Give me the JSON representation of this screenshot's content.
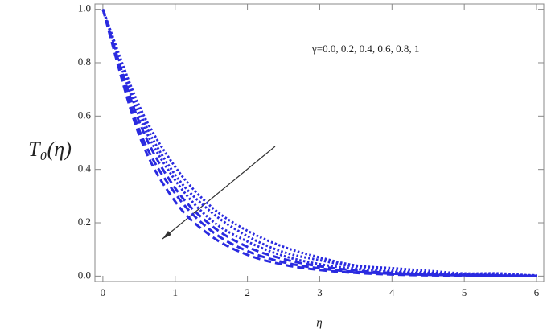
{
  "chart_data": {
    "type": "line",
    "ylabel": "T₀(η)",
    "xlabel": "η",
    "annotation": "γ=0.0, 0.2, 0.4, 0.6, 0.8, 1",
    "x": [
      0,
      0.5,
      1,
      1.5,
      2,
      2.5,
      3,
      3.5,
      4,
      4.5,
      5,
      5.5,
      6
    ],
    "series": [
      {
        "color": "#2a2ae0",
        "dash": "dotted",
        "values": [
          1,
          0.64,
          0.41,
          0.26,
          0.17,
          0.11,
          0.07,
          0.04,
          0.03,
          0.02,
          0.01,
          0.01,
          0.0
        ]
      },
      {
        "color": "#2a2ae0",
        "dash": "dotted",
        "values": [
          1,
          0.62,
          0.38,
          0.24,
          0.15,
          0.09,
          0.06,
          0.035,
          0.021,
          0.013,
          0.008,
          0.005,
          0.003
        ]
      },
      {
        "color": "#2a2ae0",
        "dash": "dotted",
        "values": [
          1,
          0.6,
          0.36,
          0.21,
          0.13,
          0.076,
          0.045,
          0.027,
          0.016,
          0.01,
          0.006,
          0.003,
          0.002
        ]
      },
      {
        "color": "#2a2ae0",
        "dash": "dashed",
        "values": [
          1,
          0.58,
          0.33,
          0.19,
          0.11,
          0.064,
          0.037,
          0.021,
          0.012,
          0.007,
          0.004,
          0.002,
          0.001
        ]
      },
      {
        "color": "#2a2ae0",
        "dash": "dashed",
        "values": [
          1,
          0.55,
          0.31,
          0.17,
          0.094,
          0.052,
          0.029,
          0.016,
          0.009,
          0.005,
          0.003,
          0.002,
          0.001
        ]
      },
      {
        "color": "#2a2ae0",
        "dash": "dashed",
        "values": [
          1,
          0.53,
          0.28,
          0.15,
          0.08,
          0.043,
          0.023,
          0.012,
          0.006,
          0.003,
          0.002,
          0.001,
          0.001
        ]
      }
    ],
    "xlim": [
      -0.11,
      6.1
    ],
    "ylim": [
      -0.02,
      1.02
    ],
    "xticks": [
      0,
      1,
      2,
      3,
      4,
      5,
      6
    ],
    "yticks": [
      {
        "value": 0,
        "label": "0.0"
      },
      0.2,
      0.4,
      0.6,
      0.8,
      {
        "value": 1,
        "label": "1.0"
      }
    ]
  }
}
